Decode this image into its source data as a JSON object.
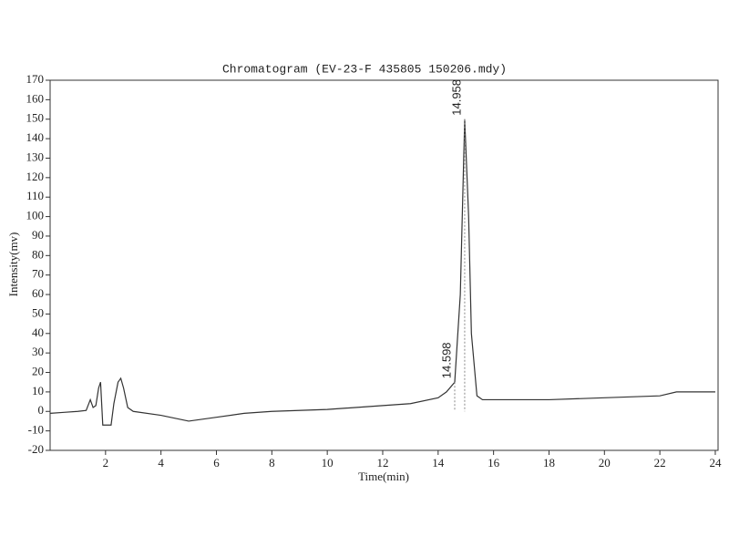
{
  "chart_data": {
    "type": "line",
    "title": "Chromatogram (EV-23-F 435805 150206.mdy)",
    "x_label": "Time(min)",
    "y_label": "Intensity(mv)",
    "x": [
      0,
      0.5,
      1,
      1.3,
      1.45,
      1.55,
      1.65,
      1.75,
      1.82,
      1.9,
      2.2,
      2.3,
      2.45,
      2.55,
      2.65,
      2.8,
      3,
      4,
      5,
      6,
      7,
      8,
      10,
      12,
      13,
      14,
      14.3,
      14.598,
      14.8,
      14.958,
      15.1,
      15.2,
      15.4,
      15.6,
      16,
      18,
      20,
      22,
      22.6,
      23,
      24
    ],
    "series": [
      {
        "name": "Intensity",
        "color": "#333333",
        "values": [
          -1,
          -0.5,
          0,
          0.5,
          6,
          2,
          3,
          12,
          15,
          -7,
          -7,
          4,
          15,
          17,
          12,
          2,
          0,
          -2,
          -5,
          -3,
          -1,
          0,
          1,
          3,
          4,
          7,
          10,
          15,
          60,
          150,
          100,
          40,
          8,
          6,
          6,
          6,
          7,
          8,
          10,
          10,
          10
        ]
      }
    ],
    "annotations": [
      {
        "x": 14.598,
        "y": 15,
        "label": "14.598"
      },
      {
        "x": 14.958,
        "y": 150,
        "label": "14.958"
      }
    ],
    "xlim": [
      0,
      24.1
    ],
    "ylim": [
      -20,
      170
    ],
    "xticks": [
      2,
      4,
      6,
      8,
      10,
      12,
      14,
      16,
      18,
      20,
      22,
      24
    ],
    "yticks": [
      -20,
      -10,
      0,
      10,
      20,
      30,
      40,
      50,
      60,
      70,
      80,
      90,
      100,
      110,
      120,
      130,
      140,
      150,
      160,
      170
    ]
  }
}
